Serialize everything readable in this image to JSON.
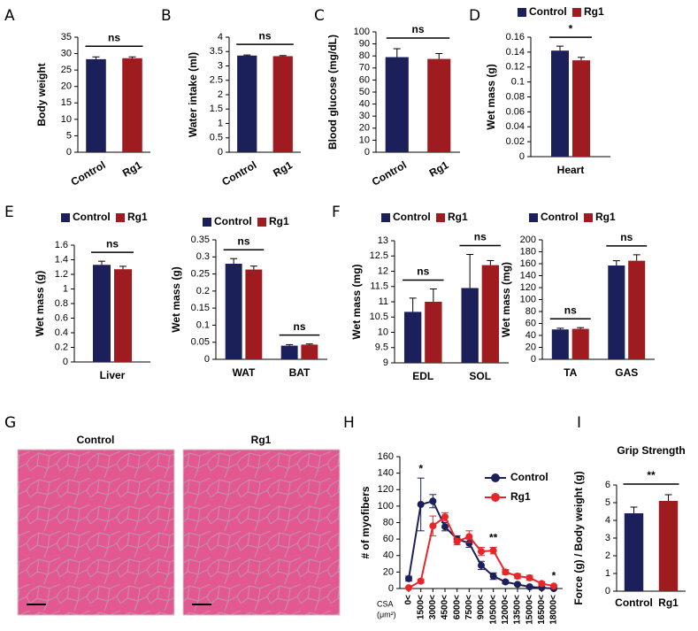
{
  "chart_data": [
    {
      "type": "bar",
      "label": "A",
      "ylabel": "Body weight",
      "categories": [
        "Control",
        "Rg1"
      ],
      "values": [
        28.3,
        28.6
      ],
      "errors": [
        0.7,
        0.4
      ],
      "colors": [
        "#1b1f5a",
        "#9e1b20"
      ],
      "annotation": "ns",
      "ylim": [
        0,
        35
      ],
      "yticks": [
        0,
        5,
        10,
        15,
        20,
        25,
        30,
        35
      ]
    },
    {
      "type": "bar",
      "label": "B",
      "ylabel": "Water intake (ml)",
      "categories": [
        "Control",
        "Rg1"
      ],
      "values": [
        3.36,
        3.34
      ],
      "errors": [
        0.02,
        0.02
      ],
      "colors": [
        "#1b1f5a",
        "#9e1b20"
      ],
      "annotation": "ns",
      "ylim": [
        0,
        4
      ],
      "yticks": [
        0,
        0.5,
        1,
        1.5,
        2,
        2.5,
        3,
        3.5,
        4
      ]
    },
    {
      "type": "bar",
      "label": "C",
      "ylabel": "Blood glucose (mg/dL)",
      "categories": [
        "Control",
        "Rg1"
      ],
      "values": [
        79,
        77.5
      ],
      "errors": [
        7,
        4.5
      ],
      "colors": [
        "#1b1f5a",
        "#9e1b20"
      ],
      "annotation": "ns",
      "ylim": [
        0,
        100
      ],
      "yticks": [
        0,
        10,
        20,
        30,
        40,
        50,
        60,
        70,
        80,
        90,
        100
      ]
    },
    {
      "type": "bar",
      "label": "D",
      "ylabel": "Wet mass (g)",
      "categories": [
        "Heart"
      ],
      "series": [
        {
          "name": "Control",
          "color": "#1b1f5a",
          "values": [
            0.142
          ],
          "errors": [
            0.006
          ]
        },
        {
          "name": "Rg1",
          "color": "#9e1b20",
          "values": [
            0.129
          ],
          "errors": [
            0.004
          ]
        }
      ],
      "annotations": [
        "*"
      ],
      "legend": true,
      "ylim": [
        0,
        0.16
      ],
      "yticks": [
        0,
        0.02,
        0.04,
        0.06,
        0.08,
        0.1,
        0.12,
        0.14,
        0.16
      ]
    },
    {
      "type": "bar",
      "label": "E",
      "ylabel": "Wet mass (g)",
      "categories": [
        "Liver"
      ],
      "series": [
        {
          "name": "Control",
          "color": "#1b1f5a",
          "values": [
            1.33
          ],
          "errors": [
            0.05
          ]
        },
        {
          "name": "Rg1",
          "color": "#9e1b20",
          "values": [
            1.27
          ],
          "errors": [
            0.04
          ]
        }
      ],
      "annotations": [
        "ns"
      ],
      "legend": true,
      "ylim": [
        0,
        1.6
      ],
      "yticks": [
        0,
        0.2,
        0.4,
        0.6,
        0.8,
        1,
        1.2,
        1.4,
        1.6
      ]
    },
    {
      "type": "bar",
      "ylabel": "Wet mass (g)",
      "categories": [
        "WAT",
        "BAT"
      ],
      "series": [
        {
          "name": "Control",
          "color": "#1b1f5a",
          "values": [
            0.28,
            0.04
          ],
          "errors": [
            0.015,
            0.003
          ]
        },
        {
          "name": "Rg1",
          "color": "#9e1b20",
          "values": [
            0.263,
            0.043
          ],
          "errors": [
            0.01,
            0.002
          ]
        }
      ],
      "annotations": [
        "ns",
        "ns"
      ],
      "legend": true,
      "ylim": [
        0,
        0.35
      ],
      "yticks": [
        0,
        0.05,
        0.1,
        0.15,
        0.2,
        0.25,
        0.3,
        0.35
      ]
    },
    {
      "type": "bar",
      "label": "F",
      "ylabel": "Wet mass (mg)",
      "categories": [
        "EDL",
        "SOL"
      ],
      "series": [
        {
          "name": "Control",
          "color": "#1b1f5a",
          "values": [
            10.67,
            11.45
          ],
          "errors": [
            0.45,
            1.1
          ]
        },
        {
          "name": "Rg1",
          "color": "#9e1b20",
          "values": [
            11.0,
            12.2
          ],
          "errors": [
            0.42,
            0.15
          ]
        }
      ],
      "annotations": [
        "ns",
        "ns"
      ],
      "legend": true,
      "ylim": [
        9,
        13
      ],
      "yticks": [
        9,
        9.5,
        10,
        10.5,
        11,
        11.5,
        12,
        12.5,
        13
      ]
    },
    {
      "type": "bar",
      "ylabel": "Wet mass (mg)",
      "categories": [
        "TA",
        "GAS"
      ],
      "series": [
        {
          "name": "Control",
          "color": "#1b1f5a",
          "values": [
            50,
            157
          ],
          "errors": [
            2,
            8
          ]
        },
        {
          "name": "Rg1",
          "color": "#9e1b20",
          "values": [
            51,
            165
          ],
          "errors": [
            2,
            10
          ]
        }
      ],
      "annotations": [
        "ns",
        "ns"
      ],
      "legend": true,
      "ylim": [
        0,
        200
      ],
      "yticks": [
        0,
        20,
        40,
        60,
        80,
        100,
        120,
        140,
        160,
        180,
        200
      ]
    },
    {
      "type": "line",
      "label": "H",
      "ylabel": "# of myofibers",
      "xlabel": [
        "CSA",
        "(μm²)"
      ],
      "categories": [
        "0<",
        "1500<",
        "3000<",
        "4500<",
        "6000<",
        "7500<",
        "9000<",
        "10500<",
        "12000<",
        "13500<",
        "15000<",
        "16500<",
        "18000<"
      ],
      "series": [
        {
          "name": "Control",
          "color": "#1b1f5a",
          "values": [
            12,
            102,
            106,
            75,
            60,
            55,
            28,
            15,
            8,
            5,
            2,
            1,
            0
          ],
          "errors": [
            3,
            32,
            8,
            5,
            4,
            5,
            5,
            4,
            2,
            1,
            1,
            1,
            0.5
          ]
        },
        {
          "name": "Rg1",
          "color": "#e8262a",
          "values": [
            1,
            9,
            76,
            87,
            57,
            63,
            45,
            46,
            20,
            15,
            13,
            6,
            3
          ],
          "errors": [
            1,
            2,
            12,
            5,
            4,
            7,
            5,
            4,
            3,
            3,
            3,
            2,
            1
          ]
        }
      ],
      "annotations": [
        null,
        "*",
        null,
        null,
        null,
        null,
        null,
        "**",
        null,
        null,
        null,
        null,
        "*"
      ],
      "legend": true,
      "ylim": [
        0,
        160
      ],
      "yticks": [
        0,
        20,
        40,
        60,
        80,
        100,
        120,
        140,
        160
      ]
    },
    {
      "type": "bar",
      "label": "I",
      "title": "Grip Strength",
      "ylabel": "Force (g) / Body weight (g)",
      "categories": [
        "Control",
        "Rg1"
      ],
      "values": [
        4.4,
        5.1
      ],
      "errors": [
        0.35,
        0.35
      ],
      "colors": [
        "#1b1f5a",
        "#9e1b20"
      ],
      "annotation": "**",
      "ylim": [
        0,
        6
      ],
      "yticks": [
        0,
        1,
        2,
        3,
        4,
        5,
        6
      ]
    }
  ],
  "panel_g": {
    "label": "G",
    "images": [
      {
        "title": "Control"
      },
      {
        "title": "Rg1"
      }
    ]
  }
}
